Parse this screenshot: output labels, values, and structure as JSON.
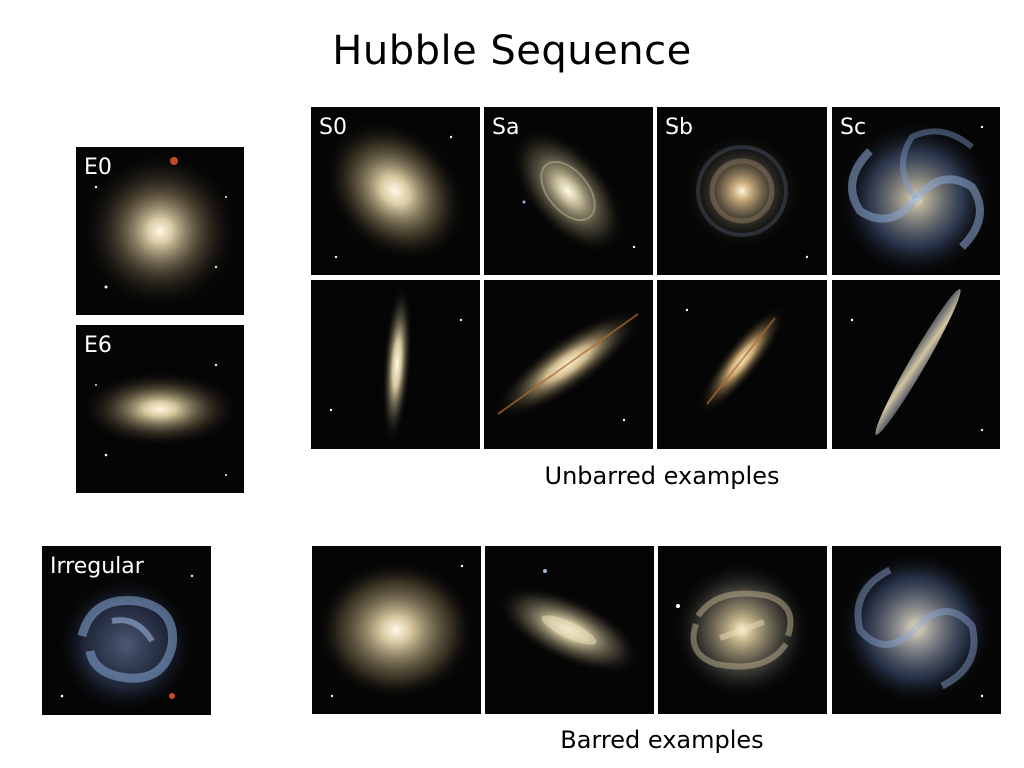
{
  "slide": {
    "title": "Hubble Sequence",
    "unbarred_caption": "Unbarred examples",
    "barred_caption": "Barred examples"
  },
  "panels": {
    "e0": {
      "label": "E0"
    },
    "e6": {
      "label": "E6"
    },
    "irregular": {
      "label": "Irregular"
    },
    "s0": {
      "label": "S0"
    },
    "sa": {
      "label": "Sa"
    },
    "sb": {
      "label": "Sb"
    },
    "sc": {
      "label": "Sc"
    }
  },
  "colors": {
    "background": "#ffffff",
    "sky": "#050505",
    "elliptical_core": "#f4ecd2",
    "elliptical_halo": "#8a7a5a",
    "spiral_arm_blue": "#7f9cc9",
    "dust_lane": "#b06a2c"
  }
}
